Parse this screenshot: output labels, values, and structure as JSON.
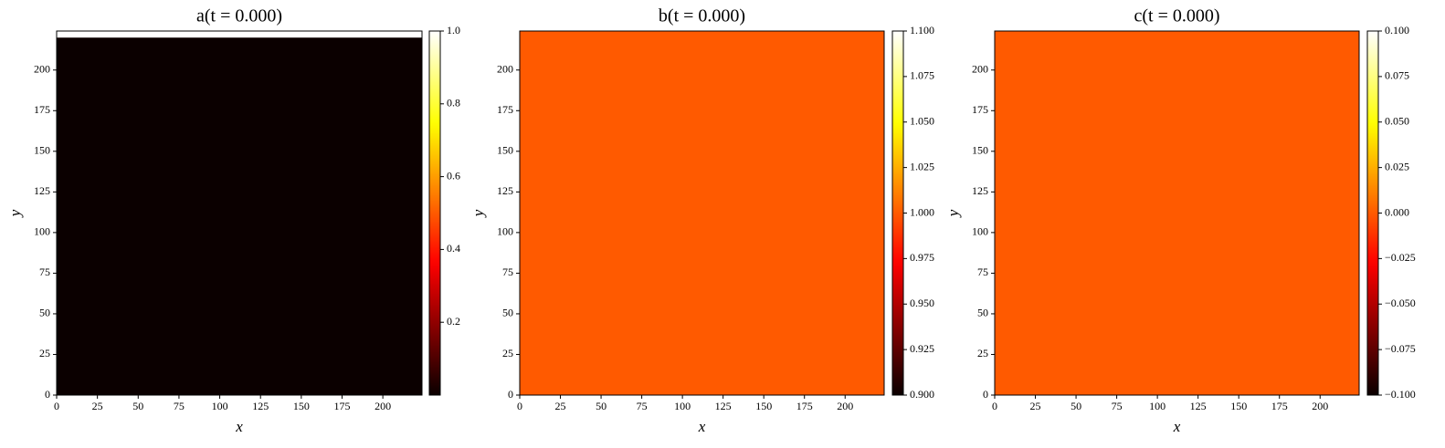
{
  "chart_data": [
    {
      "type": "heatmap",
      "title": "a(t = 0.000)",
      "xlabel": "x",
      "ylabel": "y",
      "colormap": "hot",
      "xlim": [
        0,
        224
      ],
      "ylim": [
        0,
        224
      ],
      "xticks": [
        0,
        25,
        50,
        75,
        100,
        125,
        150,
        175,
        200
      ],
      "yticks": [
        0,
        25,
        50,
        75,
        100,
        125,
        150,
        175,
        200
      ],
      "y_edges": [
        0,
        220,
        224
      ],
      "values": [
        0.0,
        1.0
      ],
      "clim": [
        0,
        1
      ],
      "cticks": [
        0.2,
        0.4,
        0.6,
        0.8,
        {
          "value": 1.0,
          "label": "1.0"
        }
      ]
    },
    {
      "type": "heatmap",
      "title": "b(t = 0.000)",
      "xlabel": "x",
      "ylabel": "y",
      "colormap": "hot",
      "xlim": [
        0,
        224
      ],
      "ylim": [
        0,
        224
      ],
      "xticks": [
        0,
        25,
        50,
        75,
        100,
        125,
        150,
        175,
        200
      ],
      "yticks": [
        0,
        25,
        50,
        75,
        100,
        125,
        150,
        175,
        200
      ],
      "y_edges": [
        0,
        224
      ],
      "values": [
        1.0
      ],
      "clim": [
        0.9,
        1.1
      ],
      "cticks": [
        {
          "value": 0.9,
          "label": "0.900"
        },
        {
          "value": 0.925,
          "label": "0.925"
        },
        {
          "value": 0.95,
          "label": "0.950"
        },
        {
          "value": 0.975,
          "label": "0.975"
        },
        {
          "value": 1.0,
          "label": "1.000"
        },
        {
          "value": 1.025,
          "label": "1.025"
        },
        {
          "value": 1.05,
          "label": "1.050"
        },
        {
          "value": 1.075,
          "label": "1.075"
        },
        {
          "value": 1.1,
          "label": "1.100"
        }
      ]
    },
    {
      "type": "heatmap",
      "title": "c(t = 0.000)",
      "xlabel": "x",
      "ylabel": "y",
      "colormap": "hot",
      "xlim": [
        0,
        224
      ],
      "ylim": [
        0,
        224
      ],
      "xticks": [
        0,
        25,
        50,
        75,
        100,
        125,
        150,
        175,
        200
      ],
      "yticks": [
        0,
        25,
        50,
        75,
        100,
        125,
        150,
        175,
        200
      ],
      "y_edges": [
        0,
        224
      ],
      "values": [
        0.0
      ],
      "clim": [
        -0.1,
        0.1
      ],
      "cticks": [
        {
          "value": -0.1,
          "label": "−0.100"
        },
        {
          "value": -0.075,
          "label": "−0.075"
        },
        {
          "value": -0.05,
          "label": "−0.050"
        },
        {
          "value": -0.025,
          "label": "−0.025"
        },
        {
          "value": 0.0,
          "label": "0.000"
        },
        {
          "value": 0.025,
          "label": "0.025"
        },
        {
          "value": 0.05,
          "label": "0.050"
        },
        {
          "value": 0.075,
          "label": "0.075"
        },
        {
          "value": 0.1,
          "label": "0.100"
        }
      ]
    }
  ]
}
